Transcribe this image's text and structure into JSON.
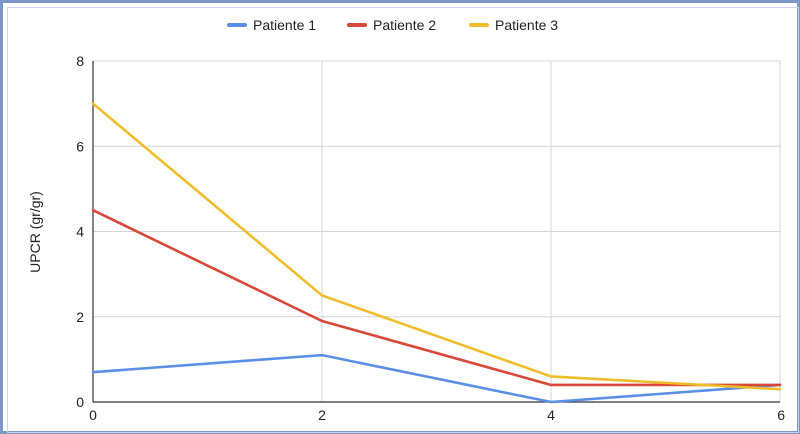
{
  "chart_data": {
    "type": "line",
    "title": "",
    "xlabel": "",
    "ylabel": "UPCR (gr/gr)",
    "x": [
      0,
      2,
      4,
      6
    ],
    "xlim": [
      0,
      6
    ],
    "ylim": [
      0,
      8
    ],
    "x_ticks": [
      "0",
      "2",
      "4",
      "6"
    ],
    "y_ticks": [
      "0",
      "2",
      "4",
      "6",
      "8"
    ],
    "grid": true,
    "legend_position": "top",
    "series": [
      {
        "name": "Patiente 1",
        "color": "#5b8ee6",
        "values": [
          0.7,
          1.1,
          0.0,
          0.4
        ]
      },
      {
        "name": "Patiente 2",
        "color": "#d8473a",
        "values": [
          4.5,
          1.9,
          0.4,
          0.4
        ]
      },
      {
        "name": "Patiente 3",
        "color": "#f0bd2a",
        "values": [
          7.0,
          2.5,
          0.6,
          0.3
        ]
      }
    ]
  }
}
